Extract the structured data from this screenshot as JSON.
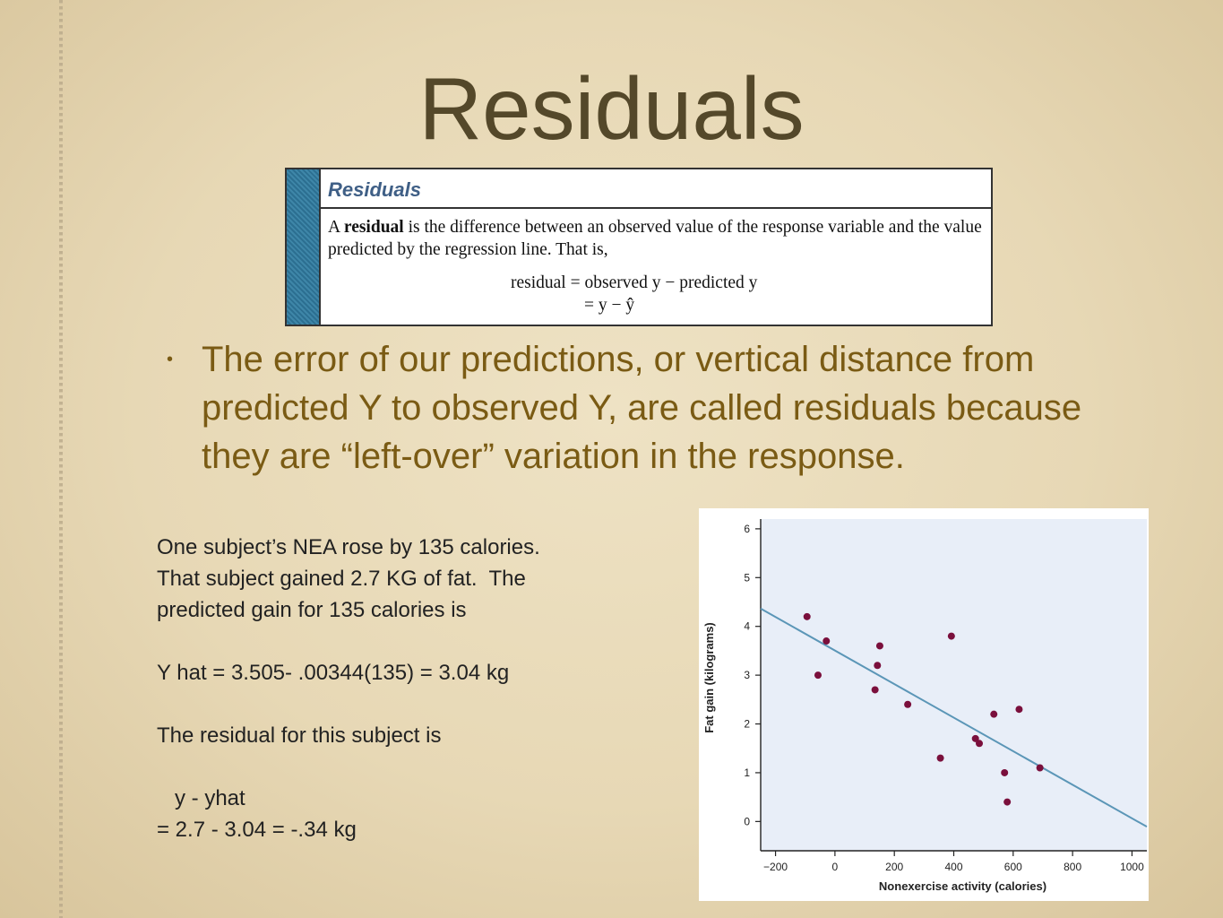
{
  "slide": {
    "title": "Residuals",
    "bullet": "The error of our predictions, or vertical distance from predicted Y to observed Y, are called residuals because they are “left-over” variation in the response."
  },
  "definition_box": {
    "heading": "Residuals",
    "text_prefix": "A ",
    "text_bold": "residual",
    "text_rest": " is the difference between an observed value of the response variable and the value predicted by the regression line. That is,",
    "formula_line1": "residual = observed y − predicted y",
    "formula_line2": "= y − ŷ",
    "accent_color": "#3f5f86"
  },
  "notes": {
    "lines": [
      "One subject’s NEA rose by 135 calories.",
      "That subject gained 2.7 KG of fat.  The",
      "predicted gain for 135 calories is",
      "",
      "Y hat = 3.505- .00344(135) = 3.04 kg",
      "",
      "The residual for this subject is",
      "",
      "   y - yhat",
      "= 2.7 - 3.04 = -.34 kg"
    ]
  },
  "chart_data": {
    "type": "scatter",
    "xlabel": "Nonexercise activity (calories)",
    "ylabel": "Fat gain (kilograms)",
    "xlim": [
      -250,
      1050
    ],
    "ylim": [
      -0.6,
      6.2
    ],
    "xticks": [
      -200,
      0,
      200,
      400,
      600,
      800,
      1000
    ],
    "yticks": [
      0,
      1,
      2,
      3,
      4,
      5,
      6
    ],
    "xtick_labels": [
      "−200",
      "0",
      "200",
      "400",
      "600",
      "800",
      "1000"
    ],
    "ytick_labels": [
      "0",
      "1",
      "2",
      "3",
      "4",
      "5",
      "6"
    ],
    "points": [
      {
        "x": -94,
        "y": 4.2
      },
      {
        "x": -57,
        "y": 3.0
      },
      {
        "x": -29,
        "y": 3.7
      },
      {
        "x": 135,
        "y": 2.7
      },
      {
        "x": 143,
        "y": 3.2
      },
      {
        "x": 151,
        "y": 3.6
      },
      {
        "x": 245,
        "y": 2.4
      },
      {
        "x": 355,
        "y": 1.3
      },
      {
        "x": 392,
        "y": 3.8
      },
      {
        "x": 473,
        "y": 1.7
      },
      {
        "x": 486,
        "y": 1.6
      },
      {
        "x": 535,
        "y": 2.2
      },
      {
        "x": 571,
        "y": 1.0
      },
      {
        "x": 580,
        "y": 0.4
      },
      {
        "x": 620,
        "y": 2.3
      },
      {
        "x": 690,
        "y": 1.1
      }
    ],
    "regression": {
      "intercept": 3.505,
      "slope": -0.00344
    },
    "colors": {
      "plot_bg": "#e8eef8",
      "point": "#7a0f3c",
      "line": "#5b96b7"
    }
  }
}
